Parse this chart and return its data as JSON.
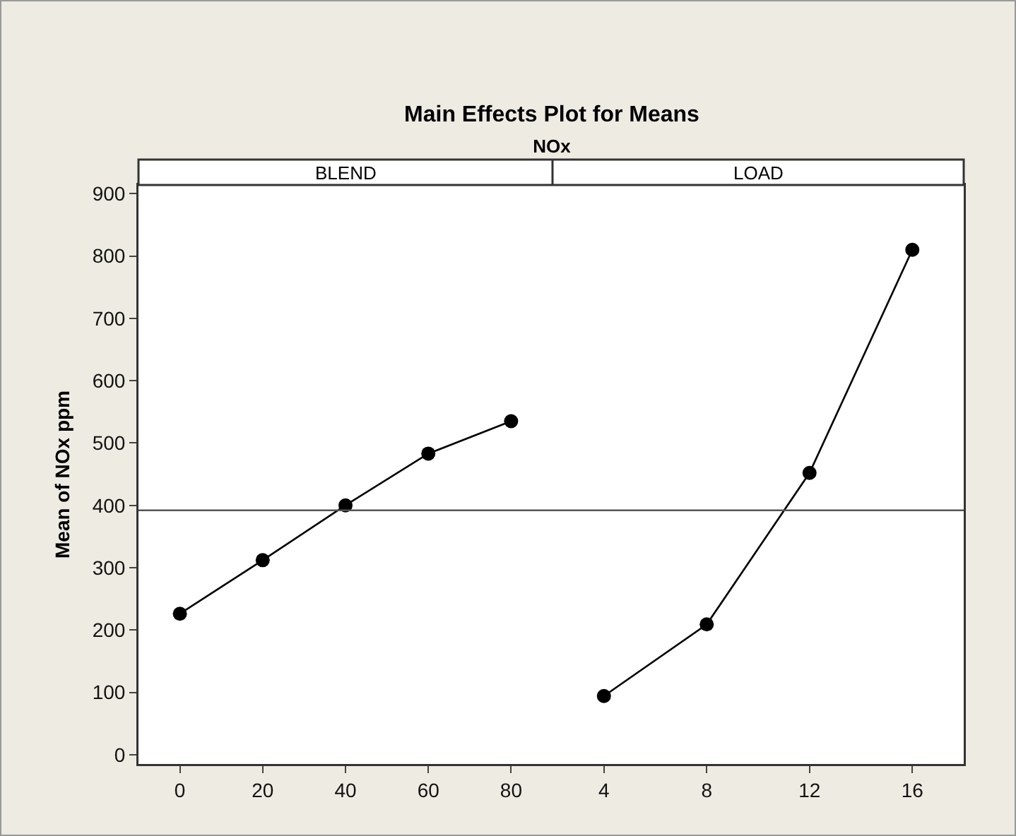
{
  "chart_data": [
    {
      "type": "line",
      "title": "Main Effects Plot for Means",
      "subtitle": "NOx",
      "xlabel": "BLEND",
      "ylabel": "Mean of NOx ppm",
      "x": [
        0,
        20,
        40,
        60,
        80
      ],
      "xlim": [
        -10,
        90
      ],
      "xticks": [
        0,
        20,
        40,
        60,
        80
      ],
      "ylim": [
        -15,
        914
      ],
      "yticks": [
        0,
        100,
        200,
        300,
        400,
        500,
        600,
        700,
        800,
        900
      ],
      "series": [
        {
          "color": "#000000",
          "values": [
            226,
            312,
            400,
            483,
            535
          ]
        }
      ],
      "ref_lines": [
        {
          "axis": "y",
          "value": 392,
          "color": "#555555"
        }
      ],
      "marker": "circle"
    },
    {
      "type": "line",
      "xlabel": "LOAD",
      "x": [
        4,
        8,
        12,
        16
      ],
      "xlim": [
        2,
        18
      ],
      "xticks": [
        4,
        8,
        12,
        16
      ],
      "ylim": [
        -15,
        914
      ],
      "yticks": [
        0,
        100,
        200,
        300,
        400,
        500,
        600,
        700,
        800,
        900
      ],
      "series": [
        {
          "color": "#000000",
          "values": [
            94,
            209,
            452,
            810
          ]
        }
      ],
      "ref_lines": [
        {
          "axis": "y",
          "value": 392,
          "color": "#555555"
        }
      ],
      "marker": "circle",
      "tick_labels": "x"
    }
  ]
}
